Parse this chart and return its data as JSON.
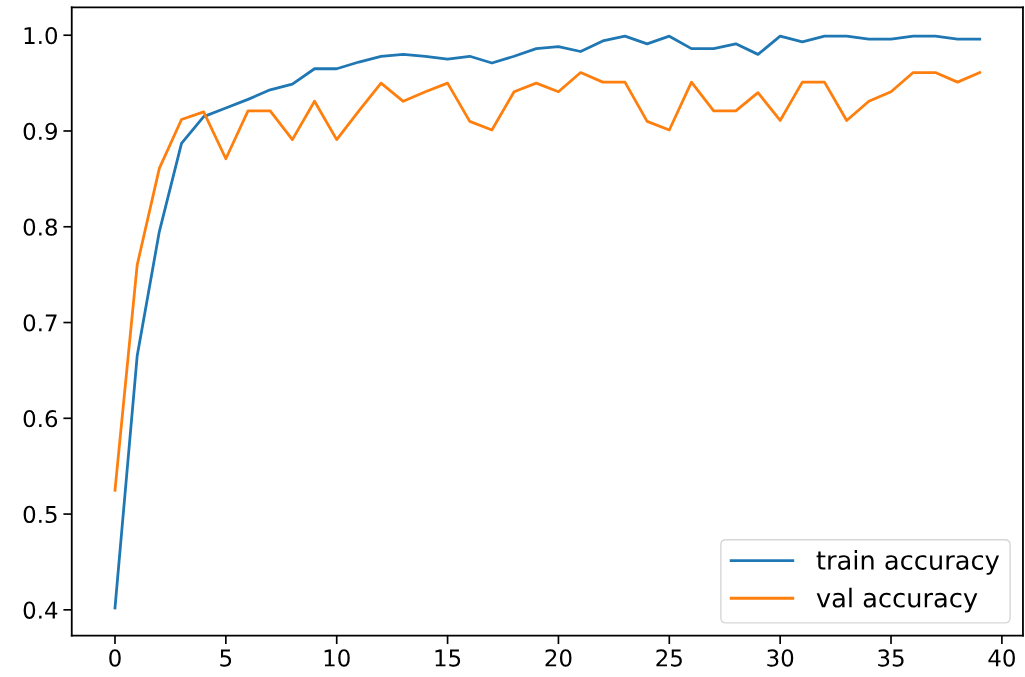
{
  "chart_data": {
    "type": "line",
    "x": [
      0,
      1,
      2,
      3,
      4,
      5,
      6,
      7,
      8,
      9,
      10,
      11,
      12,
      13,
      14,
      15,
      16,
      17,
      18,
      19,
      20,
      21,
      22,
      23,
      24,
      25,
      26,
      27,
      28,
      29,
      30,
      31,
      32,
      33,
      34,
      35,
      36,
      37,
      38,
      39
    ],
    "series": [
      {
        "name": "train accuracy",
        "color": "#1f77b4",
        "values": [
          0.402,
          0.665,
          0.795,
          0.887,
          0.915,
          0.924,
          0.933,
          0.943,
          0.949,
          0.965,
          0.965,
          0.972,
          0.978,
          0.98,
          0.978,
          0.975,
          0.978,
          0.971,
          0.978,
          0.986,
          0.988,
          0.983,
          0.994,
          0.999,
          0.991,
          0.999,
          0.986,
          0.986,
          0.991,
          0.98,
          0.999,
          0.993,
          0.999,
          0.999,
          0.996,
          0.996,
          0.999,
          0.999,
          0.996,
          0.996
        ]
      },
      {
        "name": "val accuracy",
        "color": "#ff7f0e",
        "values": [
          0.525,
          0.76,
          0.861,
          0.912,
          0.92,
          0.871,
          0.921,
          0.921,
          0.891,
          0.931,
          0.891,
          0.921,
          0.95,
          0.931,
          0.941,
          0.95,
          0.91,
          0.901,
          0.941,
          0.95,
          0.941,
          0.961,
          0.951,
          0.951,
          0.91,
          0.901,
          0.951,
          0.921,
          0.921,
          0.94,
          0.911,
          0.951,
          0.951,
          0.911,
          0.931,
          0.941,
          0.961,
          0.961,
          0.951,
          0.961
        ]
      }
    ],
    "xlim": [
      -1.95,
      40.95
    ],
    "ylim": [
      0.373,
      1.029
    ],
    "xticks": [
      0,
      5,
      10,
      15,
      20,
      25,
      30,
      35,
      40
    ],
    "yticks": [
      0.4,
      0.5,
      0.6,
      0.7,
      0.8,
      0.9,
      {
        "value": 1.0,
        "label": "1.0"
      }
    ],
    "grid": false,
    "legend": "bottom right"
  }
}
